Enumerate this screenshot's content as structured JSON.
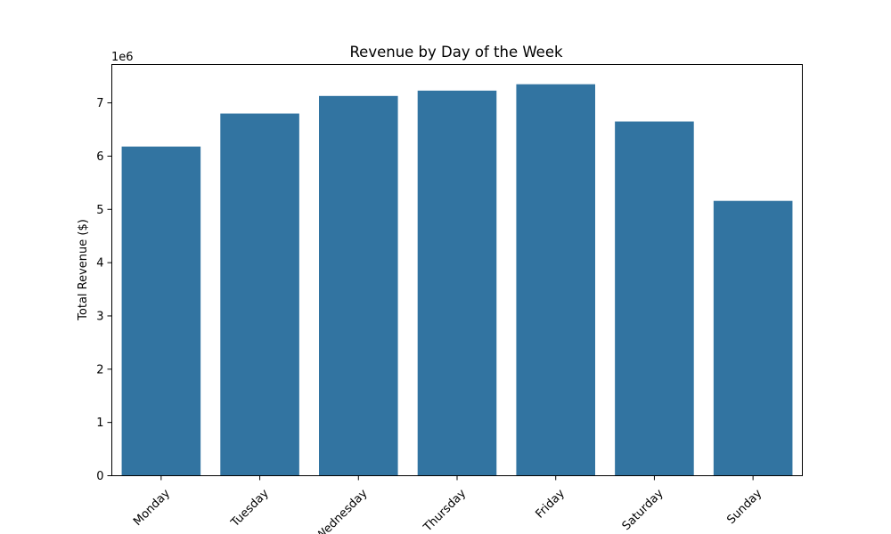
{
  "chart_data": {
    "type": "bar",
    "title": "Revenue by Day of the Week",
    "xlabel": "",
    "ylabel": "Total Revenue ($)",
    "y_offset_label": "1e6",
    "categories": [
      "Monday",
      "Tuesday",
      "Wednesday",
      "Thursday",
      "Friday",
      "Saturday",
      "Sunday"
    ],
    "values": [
      6180000,
      6800000,
      7130000,
      7230000,
      7350000,
      6650000,
      5160000
    ],
    "ylim": [
      0,
      7720000
    ],
    "yticks": [
      0,
      1000000,
      2000000,
      3000000,
      4000000,
      5000000,
      6000000,
      7000000
    ],
    "ytick_labels": [
      "0",
      "1",
      "2",
      "3",
      "4",
      "5",
      "6",
      "7"
    ],
    "bar_color": "#3274a1",
    "grid": false,
    "legend": "none"
  }
}
